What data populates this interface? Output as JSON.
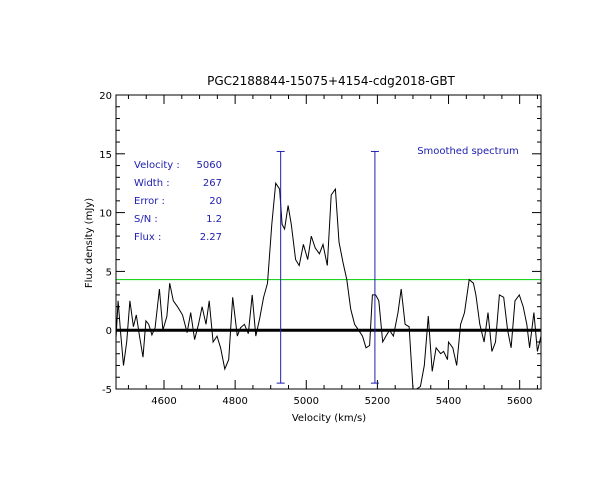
{
  "colors": {
    "spectrum": "#000000",
    "baseline": "#000000",
    "noise_level": "#00cc00",
    "markers": "#2020b0",
    "info_text": "#2020b0"
  },
  "chart_data": {
    "type": "line",
    "title": "PGC2188844-15075+4154-cdg2018-GBT",
    "xlabel": "Velocity (km/s)",
    "ylabel": "Flux density (mJy)",
    "xlim": [
      4465,
      5660
    ],
    "ylim": [
      -5,
      20
    ],
    "x_ticks": [
      4600,
      4800,
      5000,
      5200,
      5400,
      5600
    ],
    "y_ticks": [
      -5,
      0,
      5,
      10,
      15,
      20
    ],
    "x_tick_labels": [
      "4600",
      "4800",
      "5000",
      "5200",
      "5400",
      "5600"
    ],
    "y_tick_labels": [
      "-5",
      "0",
      "5",
      "10",
      "15",
      "20"
    ],
    "legend_label": "Smoothed spectrum",
    "baseline_level": 0,
    "noise_level": 4.3,
    "velocity_markers": [
      4928,
      5193
    ],
    "marker_y_range": [
      -4.5,
      15.2
    ],
    "info": [
      {
        "label": "Velocity :",
        "value": "5060"
      },
      {
        "label": "Width :",
        "value": "267"
      },
      {
        "label": "Error :",
        "value": "20"
      },
      {
        "label": "S/N :",
        "value": "1.2"
      },
      {
        "label": "Flux :",
        "value": "2.27"
      }
    ],
    "series": [
      {
        "name": "Smoothed spectrum",
        "x": [
          4465,
          4471,
          4478,
          4486,
          4495,
          4504,
          4514,
          4522,
          4531,
          4541,
          4549,
          4557,
          4566,
          4575,
          4587,
          4597,
          4608,
          4616,
          4626,
          4638,
          4652,
          4665,
          4675,
          4686,
          4697,
          4707,
          4718,
          4727,
          4738,
          4749,
          4759,
          4771,
          4782,
          4793,
          4806,
          4815,
          4826,
          4837,
          4848,
          4858,
          4869,
          4880,
          4891,
          4903,
          4914,
          4925,
          4932,
          4939,
          4949,
          4958,
          4970,
          4980,
          4992,
          5004,
          5014,
          5025,
          5037,
          5047,
          5059,
          5070,
          5082,
          5092,
          5103,
          5114,
          5125,
          5136,
          5147,
          5158,
          5168,
          5178,
          5186,
          5195,
          5204,
          5215,
          5224,
          5234,
          5245,
          5258,
          5267,
          5278,
          5289,
          5300,
          5310,
          5321,
          5332,
          5343,
          5354,
          5365,
          5378,
          5386,
          5397,
          5400,
          5412,
          5423,
          5434,
          5445,
          5458,
          5470,
          5477,
          5488,
          5500,
          5511,
          5522,
          5532,
          5543,
          5555,
          5566,
          5576,
          5587,
          5599,
          5610,
          5620,
          5628,
          5640,
          5650,
          5660
        ],
        "y": [
          -0.7,
          2.5,
          -0.2,
          -3.0,
          -1.0,
          2.5,
          0.3,
          1.3,
          -0.5,
          -2.3,
          0.8,
          0.5,
          -0.4,
          0.2,
          3.5,
          0.0,
          1.2,
          4.0,
          2.5,
          2.0,
          1.3,
          -0.2,
          1.5,
          -0.8,
          0.5,
          2.0,
          0.5,
          2.5,
          -1.0,
          -0.5,
          -1.5,
          -3.3,
          -2.5,
          2.8,
          -0.5,
          0.2,
          0.5,
          -0.3,
          3.0,
          -0.5,
          1.0,
          2.8,
          4.0,
          9.0,
          12.5,
          12.0,
          9.0,
          8.6,
          10.6,
          9.0,
          6.0,
          5.5,
          7.3,
          6.0,
          8.0,
          7.0,
          6.5,
          7.3,
          5.5,
          11.5,
          12.0,
          7.5,
          5.8,
          4.3,
          1.8,
          0.5,
          0.0,
          -0.5,
          -1.5,
          -1.3,
          3.0,
          3.0,
          2.5,
          -1.0,
          -0.5,
          0.0,
          -0.5,
          1.5,
          3.5,
          0.5,
          0.3,
          -5.0,
          -5.0,
          -4.8,
          -3.0,
          1.2,
          -3.5,
          -1.5,
          -2.0,
          -1.8,
          -2.5,
          -1.0,
          -1.5,
          -3.0,
          0.5,
          1.5,
          4.3,
          4.0,
          3.0,
          0.5,
          -1.0,
          1.5,
          -1.8,
          -1.0,
          3.0,
          2.8,
          0.0,
          -1.5,
          2.5,
          3.0,
          2.0,
          0.5,
          -1.5,
          1.5,
          -1.8,
          -0.5
        ]
      }
    ]
  }
}
